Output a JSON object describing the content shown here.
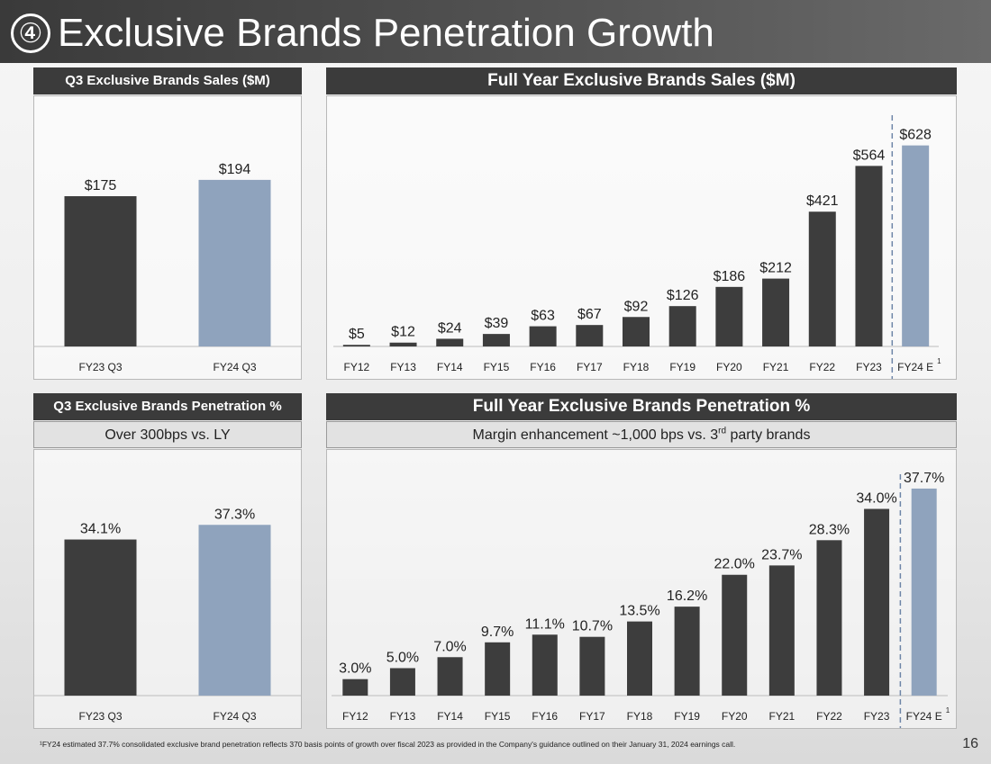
{
  "header": {
    "title_number": "④",
    "title": "Exclusive Brands Penetration Growth"
  },
  "colors": {
    "dark_bar": "#3d3d3d",
    "highlight_bar": "#8fa3bd",
    "header_bg": "#3b3b3b"
  },
  "footnote": "¹FY24 estimated 37.7% consolidated exclusive brand penetration reflects 370 basis points of growth over fiscal 2023 as provided in the Company's guidance outlined on their January 31, 2024 earnings call.",
  "page_number": "16",
  "panels": {
    "q3_sales": {
      "title": "Q3 Exclusive Brands Sales ($M)"
    },
    "fy_sales": {
      "title": "Full Year Exclusive Brands Sales ($M)"
    },
    "q3_penetration": {
      "title": "Q3 Exclusive Brands Penetration %",
      "subtitle": "Over 300bps vs. LY"
    },
    "fy_penetration": {
      "title": "Full Year Exclusive Brands Penetration %",
      "subtitle_pre": "Margin enhancement ~1,000 bps vs. 3",
      "subtitle_sup": "rd",
      "subtitle_post": " party brands"
    }
  },
  "chart_data": [
    {
      "id": "q3_sales",
      "type": "bar",
      "title": "Q3 Exclusive Brands Sales ($M)",
      "categories": [
        "FY23 Q3",
        "FY24 Q3"
      ],
      "values": [
        175,
        194
      ],
      "labels": [
        "$175",
        "$194"
      ],
      "highlight": [
        false,
        true
      ],
      "ylim": [
        0,
        240
      ],
      "footnote_marks": [
        "",
        ""
      ]
    },
    {
      "id": "fy_sales",
      "type": "bar",
      "title": "Full Year Exclusive Brands Sales ($M)",
      "categories": [
        "FY12",
        "FY13",
        "FY14",
        "FY15",
        "FY16",
        "FY17",
        "FY18",
        "FY19",
        "FY20",
        "FY21",
        "FY22",
        "FY23",
        "FY24 E"
      ],
      "values": [
        5,
        12,
        24,
        39,
        63,
        67,
        92,
        126,
        186,
        212,
        421,
        564,
        628
      ],
      "labels": [
        "$5",
        "$12",
        "$24",
        "$39",
        "$63",
        "$67",
        "$92",
        "$126",
        "$186",
        "$212",
        "$421",
        "$564",
        "$628"
      ],
      "highlight": [
        false,
        false,
        false,
        false,
        false,
        false,
        false,
        false,
        false,
        false,
        false,
        false,
        true
      ],
      "ylim": [
        0,
        700
      ],
      "divider_after_index": 11,
      "footnote_marks": [
        "",
        "",
        "",
        "",
        "",
        "",
        "",
        "",
        "",
        "",
        "",
        "",
        "1"
      ]
    },
    {
      "id": "q3_penetration",
      "type": "bar",
      "title": "Q3 Exclusive Brands Penetration %",
      "categories": [
        "FY23 Q3",
        "FY24 Q3"
      ],
      "values": [
        34.1,
        37.3
      ],
      "labels": [
        "34.1%",
        "37.3%"
      ],
      "highlight": [
        false,
        true
      ],
      "ylim": [
        0,
        46
      ],
      "footnote_marks": [
        "",
        ""
      ]
    },
    {
      "id": "fy_penetration",
      "type": "bar",
      "title": "Full Year Exclusive Brands Penetration %",
      "categories": [
        "FY12",
        "FY13",
        "FY14",
        "FY15",
        "FY16",
        "FY17",
        "FY18",
        "FY19",
        "FY20",
        "FY21",
        "FY22",
        "FY23",
        "FY24 E"
      ],
      "values": [
        3.0,
        5.0,
        7.0,
        9.7,
        11.1,
        10.7,
        13.5,
        16.2,
        22.0,
        23.7,
        28.3,
        34.0,
        37.7
      ],
      "labels": [
        "3.0%",
        "5.0%",
        "7.0%",
        "9.7%",
        "11.1%",
        "10.7%",
        "13.5%",
        "16.2%",
        "22.0%",
        "23.7%",
        "28.3%",
        "34.0%",
        "37.7%"
      ],
      "highlight": [
        false,
        false,
        false,
        false,
        false,
        false,
        false,
        false,
        false,
        false,
        false,
        false,
        true
      ],
      "ylim": [
        0,
        39
      ],
      "divider_after_index": 11,
      "footnote_marks": [
        "",
        "",
        "",
        "",
        "",
        "",
        "",
        "",
        "",
        "",
        "",
        "",
        "1"
      ]
    }
  ]
}
